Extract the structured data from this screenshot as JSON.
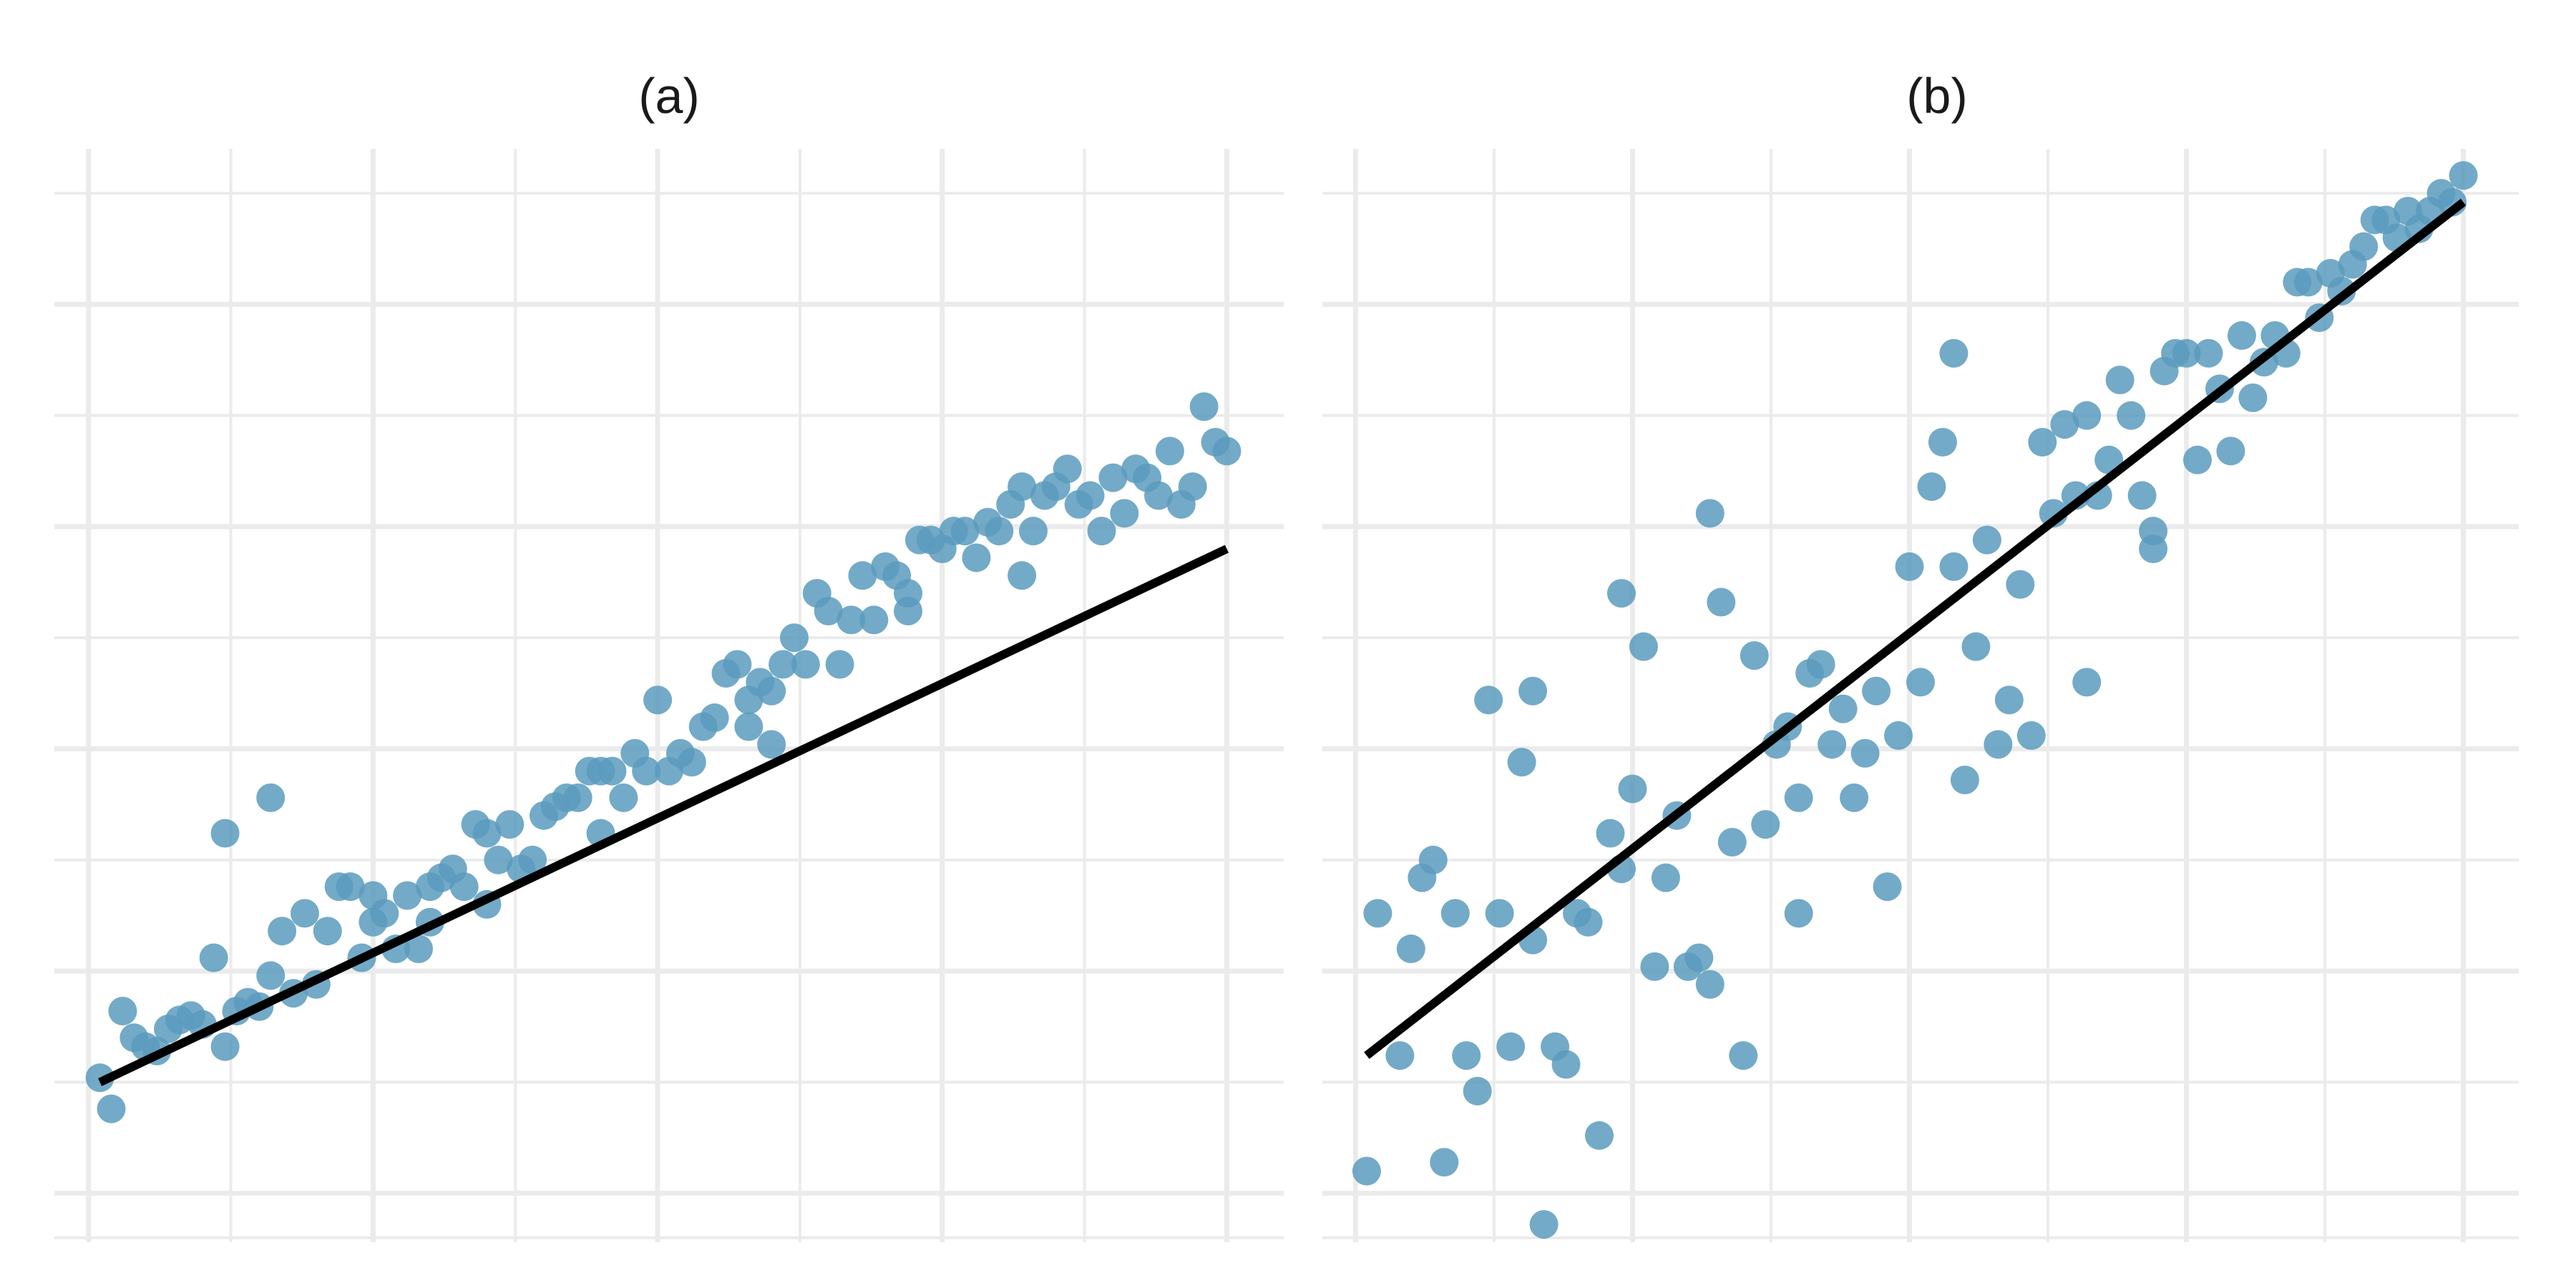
{
  "style": {
    "background": "#ffffff",
    "grid_color": "#ebebeb",
    "point_color": "#5b9bbd",
    "point_opacity": 0.85,
    "line_color": "#000000"
  },
  "chart_data": [
    {
      "type": "scatter",
      "title": "(a)",
      "xlabel": "",
      "ylabel": "",
      "tick_labels": "none",
      "grid": true,
      "xlim": [
        -0.03,
        1.05
      ],
      "ylim": [
        -0.18,
        1.05
      ],
      "fit_line": {
        "x": [
          0.01,
          1.0
        ],
        "y": [
          0.0,
          0.6
        ]
      },
      "x": [
        0.01,
        0.02,
        0.03,
        0.04,
        0.05,
        0.06,
        0.07,
        0.08,
        0.09,
        0.1,
        0.11,
        0.12,
        0.13,
        0.14,
        0.15,
        0.16,
        0.17,
        0.18,
        0.19,
        0.2,
        0.21,
        0.22,
        0.23,
        0.24,
        0.25,
        0.26,
        0.27,
        0.28,
        0.29,
        0.3,
        0.31,
        0.32,
        0.33,
        0.34,
        0.35,
        0.36,
        0.37,
        0.38,
        0.39,
        0.4,
        0.41,
        0.42,
        0.43,
        0.44,
        0.45,
        0.46,
        0.47,
        0.48,
        0.49,
        0.5,
        0.51,
        0.52,
        0.53,
        0.54,
        0.55,
        0.56,
        0.57,
        0.58,
        0.59,
        0.6,
        0.61,
        0.62,
        0.63,
        0.64,
        0.65,
        0.66,
        0.67,
        0.68,
        0.69,
        0.7,
        0.71,
        0.72,
        0.73,
        0.74,
        0.75,
        0.76,
        0.77,
        0.78,
        0.79,
        0.8,
        0.81,
        0.82,
        0.83,
        0.84,
        0.85,
        0.86,
        0.87,
        0.88,
        0.89,
        0.9,
        0.91,
        0.92,
        0.93,
        0.94,
        0.95,
        0.96,
        0.97,
        0.98,
        0.99,
        1.0,
        0.12,
        0.16,
        0.25,
        0.3,
        0.35,
        0.45,
        0.58,
        0.6,
        0.72,
        0.82
      ],
      "y": [
        0.005,
        -0.03,
        0.08,
        0.05,
        0.04,
        0.035,
        0.06,
        0.07,
        0.075,
        0.065,
        0.14,
        0.04,
        0.08,
        0.09,
        0.085,
        0.12,
        0.17,
        0.1,
        0.19,
        0.11,
        0.17,
        0.22,
        0.22,
        0.14,
        0.18,
        0.19,
        0.15,
        0.21,
        0.15,
        0.22,
        0.23,
        0.24,
        0.22,
        0.29,
        0.28,
        0.25,
        0.29,
        0.24,
        0.25,
        0.3,
        0.31,
        0.32,
        0.32,
        0.35,
        0.35,
        0.35,
        0.32,
        0.37,
        0.35,
        0.43,
        0.35,
        0.37,
        0.36,
        0.4,
        0.41,
        0.46,
        0.47,
        0.43,
        0.45,
        0.44,
        0.47,
        0.5,
        0.47,
        0.55,
        0.53,
        0.47,
        0.52,
        0.57,
        0.52,
        0.58,
        0.57,
        0.53,
        0.61,
        0.61,
        0.6,
        0.62,
        0.62,
        0.59,
        0.63,
        0.62,
        0.65,
        0.67,
        0.62,
        0.66,
        0.67,
        0.69,
        0.65,
        0.66,
        0.62,
        0.68,
        0.64,
        0.69,
        0.68,
        0.66,
        0.71,
        0.65,
        0.67,
        0.76,
        0.72,
        0.71,
        0.28,
        0.32,
        0.21,
        0.18,
        0.2,
        0.28,
        0.4,
        0.38,
        0.55,
        0.57
      ]
    },
    {
      "type": "scatter",
      "title": "(b)",
      "xlabel": "",
      "ylabel": "",
      "tick_labels": "none",
      "grid": true,
      "xlim": [
        -0.03,
        1.05
      ],
      "ylim": [
        -0.18,
        1.05
      ],
      "fit_line": {
        "x": [
          0.01,
          1.0
        ],
        "y": [
          0.03,
          0.99
        ]
      },
      "x": [
        0.01,
        0.02,
        0.04,
        0.05,
        0.06,
        0.07,
        0.08,
        0.09,
        0.1,
        0.11,
        0.12,
        0.13,
        0.14,
        0.15,
        0.16,
        0.17,
        0.18,
        0.19,
        0.2,
        0.21,
        0.22,
        0.23,
        0.24,
        0.25,
        0.26,
        0.27,
        0.28,
        0.29,
        0.3,
        0.31,
        0.32,
        0.33,
        0.34,
        0.35,
        0.36,
        0.37,
        0.38,
        0.39,
        0.4,
        0.41,
        0.42,
        0.43,
        0.44,
        0.45,
        0.46,
        0.47,
        0.48,
        0.49,
        0.5,
        0.51,
        0.52,
        0.53,
        0.54,
        0.55,
        0.56,
        0.57,
        0.58,
        0.59,
        0.6,
        0.61,
        0.62,
        0.63,
        0.64,
        0.65,
        0.66,
        0.67,
        0.68,
        0.69,
        0.7,
        0.71,
        0.72,
        0.73,
        0.74,
        0.75,
        0.76,
        0.77,
        0.78,
        0.79,
        0.8,
        0.81,
        0.82,
        0.83,
        0.84,
        0.85,
        0.86,
        0.87,
        0.88,
        0.89,
        0.9,
        0.91,
        0.92,
        0.93,
        0.94,
        0.95,
        0.96,
        0.97,
        0.98,
        0.99,
        1.0,
        0.16,
        0.24,
        0.32,
        0.4,
        0.54,
        0.66,
        0.72
      ],
      "y": [
        -0.1,
        0.19,
        0.03,
        0.15,
        0.23,
        0.25,
        -0.09,
        0.19,
        0.03,
        -0.01,
        0.43,
        0.19,
        0.04,
        0.36,
        0.44,
        -0.16,
        0.04,
        0.02,
        0.19,
        0.18,
        -0.06,
        0.28,
        0.24,
        0.33,
        0.49,
        0.13,
        0.23,
        0.3,
        0.13,
        0.14,
        0.11,
        0.54,
        0.27,
        0.03,
        0.48,
        0.29,
        0.38,
        0.4,
        0.19,
        0.46,
        0.47,
        0.38,
        0.42,
        0.32,
        0.37,
        0.44,
        0.22,
        0.39,
        0.58,
        0.45,
        0.67,
        0.72,
        0.58,
        0.34,
        0.49,
        0.61,
        0.38,
        0.43,
        0.56,
        0.39,
        0.72,
        0.64,
        0.74,
        0.66,
        0.45,
        0.66,
        0.7,
        0.79,
        0.75,
        0.66,
        0.6,
        0.8,
        0.82,
        0.82,
        0.7,
        0.82,
        0.78,
        0.71,
        0.84,
        0.77,
        0.81,
        0.84,
        0.82,
        0.9,
        0.9,
        0.86,
        0.91,
        0.89,
        0.92,
        0.94,
        0.97,
        0.97,
        0.95,
        0.98,
        0.96,
        0.98,
        1.0,
        0.99,
        1.02,
        0.16,
        0.55,
        0.64,
        0.32,
        0.82,
        0.75,
        0.62
      ]
    }
  ]
}
